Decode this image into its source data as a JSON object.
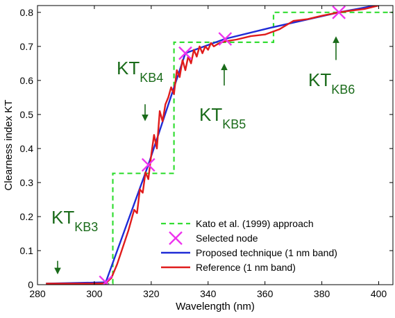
{
  "chart_data": {
    "type": "line",
    "xlabel": "Wavelength (nm)",
    "ylabel": "Clearness index KT",
    "xlim": [
      280,
      405
    ],
    "ylim": [
      0,
      0.82
    ],
    "xticks": [
      280,
      300,
      320,
      340,
      360,
      380,
      400
    ],
    "yticks": [
      0,
      0.1,
      0.2,
      0.3,
      0.4,
      0.5,
      0.6,
      0.7,
      0.8
    ],
    "grid": false,
    "legend_position": "bottom-right",
    "colors": {
      "kato": "#33dd33",
      "nodes": "#ee33ee",
      "proposed": "#1f2bd6",
      "reference": "#e01b1b",
      "annotation": "#1a6b1a"
    },
    "series": [
      {
        "name": "Kato et al. (1999) approach",
        "key": "kato",
        "style": "dashed-step",
        "x": [
          283,
          306.5,
          306.5,
          328,
          328,
          363,
          363,
          405
        ],
        "y": [
          0.003,
          0.003,
          0.327,
          0.327,
          0.712,
          0.712,
          0.8,
          0.8
        ]
      },
      {
        "name": "Selected node",
        "key": "nodes",
        "style": "marker-x",
        "x": [
          304,
          319,
          332,
          346,
          386
        ],
        "y": [
          0.007,
          0.352,
          0.68,
          0.722,
          0.8
        ]
      },
      {
        "name": "Proposed technique (1 nm band)",
        "key": "proposed",
        "style": "line",
        "x": [
          283,
          304,
          319,
          332,
          346,
          362,
          386,
          400
        ],
        "y": [
          0.003,
          0.007,
          0.352,
          0.68,
          0.722,
          0.755,
          0.8,
          0.822
        ]
      },
      {
        "name": "Reference (1 nm band)",
        "key": "reference",
        "style": "line",
        "x": [
          283,
          300,
          304,
          306,
          308,
          310,
          312,
          314,
          315,
          316,
          317,
          318,
          319,
          320,
          321,
          322,
          323,
          324,
          325,
          326,
          327,
          328,
          329,
          330,
          331,
          332,
          333,
          334,
          335,
          336,
          337,
          338,
          339,
          340,
          341,
          342,
          344,
          346,
          350,
          355,
          360,
          365,
          370,
          375,
          380,
          386,
          390,
          395,
          400
        ],
        "y": [
          0.003,
          0.003,
          0.004,
          0.02,
          0.06,
          0.11,
          0.16,
          0.22,
          0.21,
          0.28,
          0.27,
          0.33,
          0.31,
          0.38,
          0.44,
          0.4,
          0.51,
          0.48,
          0.53,
          0.55,
          0.58,
          0.56,
          0.63,
          0.61,
          0.66,
          0.63,
          0.67,
          0.65,
          0.69,
          0.67,
          0.7,
          0.68,
          0.7,
          0.69,
          0.71,
          0.7,
          0.71,
          0.715,
          0.72,
          0.73,
          0.735,
          0.75,
          0.775,
          0.78,
          0.79,
          0.8,
          0.805,
          0.81,
          0.82
        ]
      }
    ],
    "annotations": [
      {
        "main": "KT",
        "sub": "KB3",
        "x_data": 291.5,
        "arrow_from": 0.07,
        "arrow_to": 0.04
      },
      {
        "main": "KT",
        "sub": "KB4",
        "x_data": 319,
        "arrow_from": 0.53,
        "arrow_to": 0.49
      },
      {
        "main": "KT",
        "sub": "KB5",
        "x_data": 346,
        "arrow_from": 0.585,
        "arrow_to": 0.64
      },
      {
        "main": "KT",
        "sub": "KB6",
        "x_data": 386,
        "arrow_from": 0.66,
        "arrow_to": 0.72
      }
    ]
  }
}
